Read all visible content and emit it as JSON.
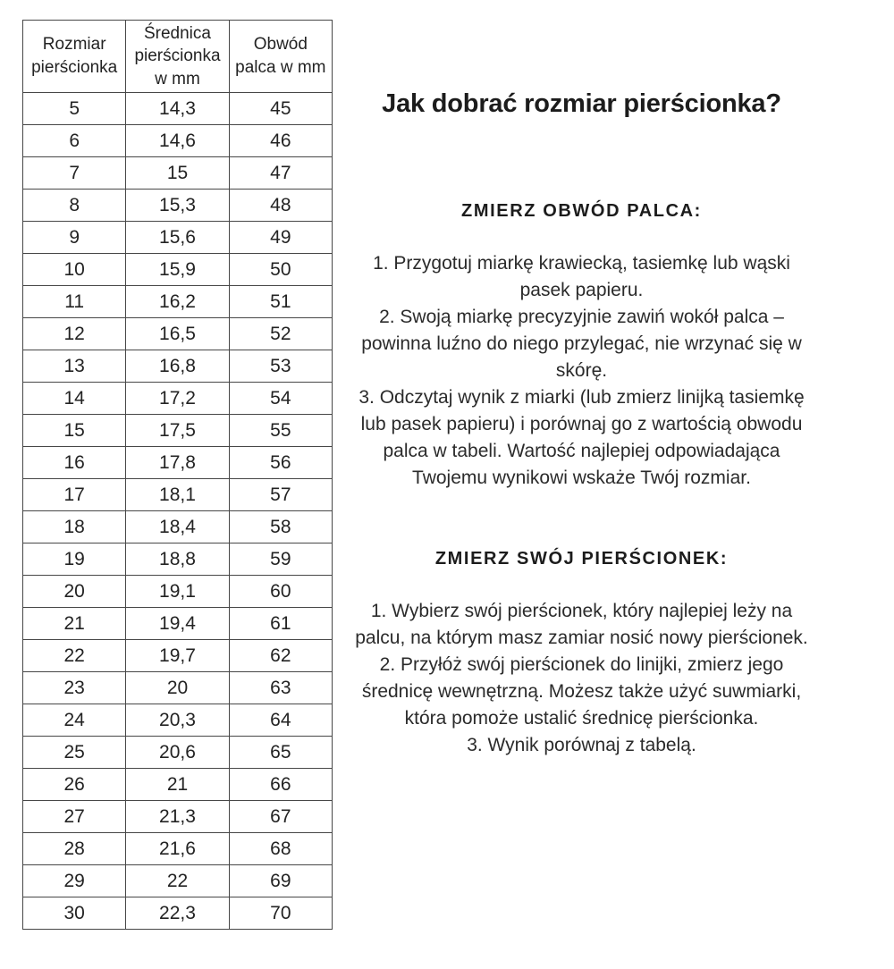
{
  "table": {
    "headers": [
      "Rozmiar pierścionka",
      "Średnica pierścionka w mm",
      "Obwód palca w mm"
    ],
    "rows": [
      [
        "5",
        "14,3",
        "45"
      ],
      [
        "6",
        "14,6",
        "46"
      ],
      [
        "7",
        "15",
        "47"
      ],
      [
        "8",
        "15,3",
        "48"
      ],
      [
        "9",
        "15,6",
        "49"
      ],
      [
        "10",
        "15,9",
        "50"
      ],
      [
        "11",
        "16,2",
        "51"
      ],
      [
        "12",
        "16,5",
        "52"
      ],
      [
        "13",
        "16,8",
        "53"
      ],
      [
        "14",
        "17,2",
        "54"
      ],
      [
        "15",
        "17,5",
        "55"
      ],
      [
        "16",
        "17,8",
        "56"
      ],
      [
        "17",
        "18,1",
        "57"
      ],
      [
        "18",
        "18,4",
        "58"
      ],
      [
        "19",
        "18,8",
        "59"
      ],
      [
        "20",
        "19,1",
        "60"
      ],
      [
        "21",
        "19,4",
        "61"
      ],
      [
        "22",
        "19,7",
        "62"
      ],
      [
        "23",
        "20",
        "63"
      ],
      [
        "24",
        "20,3",
        "64"
      ],
      [
        "25",
        "20,6",
        "65"
      ],
      [
        "26",
        "21",
        "66"
      ],
      [
        "27",
        "21,3",
        "67"
      ],
      [
        "28",
        "21,6",
        "68"
      ],
      [
        "29",
        "22",
        "69"
      ],
      [
        "30",
        "22,3",
        "70"
      ]
    ]
  },
  "content": {
    "title": "Jak dobrać rozmiar pierścionka?",
    "sections": [
      {
        "heading": "ZMIERZ OBWÓD PALCA:",
        "items": [
          "1. Przygotuj miarkę krawiecką, tasiemkę lub wąski pasek papieru.",
          "2. Swoją miarkę precyzyjnie zawiń wokół palca – powinna luźno do niego przylegać, nie wrzynać się w skórę.",
          "3. Odczytaj wynik z miarki (lub zmierz linijką tasiemkę lub pasek papieru) i porównaj go z wartością obwodu palca w tabeli. Wartość najlepiej odpowiadająca Twojemu wynikowi wskaże Twój rozmiar."
        ]
      },
      {
        "heading": "ZMIERZ SWÓJ PIERŚCIONEK:",
        "items": [
          "1. Wybierz swój pierścionek, który najlepiej leży na palcu, na którym masz zamiar nosić nowy pierścionek.",
          "2. Przyłóż swój pierścionek do linijki, zmierz jego średnicę wewnętrzną. Możesz także użyć suwmiarki, która pomoże ustalić średnicę pierścionka.",
          "3. Wynik porównaj z tabelą."
        ]
      }
    ]
  },
  "colors": {
    "text": "#232323",
    "border": "#474747",
    "background": "#ffffff"
  }
}
